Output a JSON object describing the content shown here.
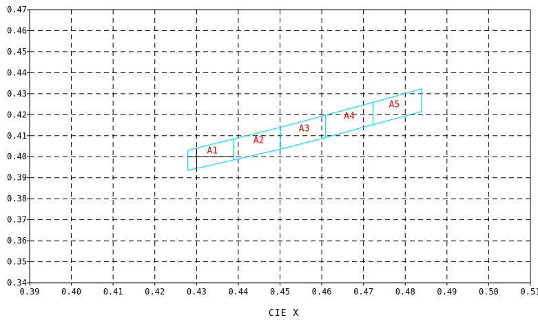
{
  "chart_data": {
    "type": "diagram",
    "title": "",
    "xlabel": "CIE X",
    "ylabel": "",
    "xlim": [
      0.39,
      0.51
    ],
    "ylim": [
      0.34,
      0.47
    ],
    "x_ticks": [
      "0.39",
      "0.40",
      "0.41",
      "0.42",
      "0.43",
      "0.44",
      "0.45",
      "0.46",
      "0.47",
      "0.48",
      "0.49",
      "0.50",
      "0.51"
    ],
    "y_ticks": [
      "0.34",
      "0.35",
      "0.36",
      "0.37",
      "0.38",
      "0.39",
      "0.40",
      "0.41",
      "0.42",
      "0.43",
      "0.44",
      "0.45",
      "0.46",
      "0.47"
    ],
    "grid": true,
    "grid_style": "dashed",
    "colors": {
      "bin_outline": "#00e5ee",
      "bin_label": "#ff0000",
      "grid": "#000000",
      "marker": "#000000"
    },
    "bins": [
      {
        "label": "A1",
        "corners": [
          [
            0.4279,
            0.3935
          ],
          [
            0.4279,
            0.4031
          ],
          [
            0.4389,
            0.4085
          ],
          [
            0.4389,
            0.3985
          ]
        ],
        "label_pos": [
          0.4325,
          0.4015
        ]
      },
      {
        "label": "A2",
        "corners": [
          [
            0.4389,
            0.3985
          ],
          [
            0.4389,
            0.4085
          ],
          [
            0.4501,
            0.414
          ],
          [
            0.4501,
            0.4036
          ]
        ],
        "label_pos": [
          0.4436,
          0.4065
        ]
      },
      {
        "label": "A3",
        "corners": [
          [
            0.4501,
            0.4036
          ],
          [
            0.4501,
            0.414
          ],
          [
            0.4609,
            0.4198
          ],
          [
            0.4609,
            0.4091
          ]
        ],
        "label_pos": [
          0.4545,
          0.4121
        ]
      },
      {
        "label": "A4",
        "corners": [
          [
            0.4609,
            0.4091
          ],
          [
            0.4609,
            0.4198
          ],
          [
            0.4723,
            0.4259
          ],
          [
            0.4723,
            0.4153
          ]
        ],
        "label_pos": [
          0.4653,
          0.418
        ]
      },
      {
        "label": "A5",
        "corners": [
          [
            0.4723,
            0.4153
          ],
          [
            0.4723,
            0.4259
          ],
          [
            0.4839,
            0.4323
          ],
          [
            0.4839,
            0.4215
          ]
        ],
        "label_pos": [
          0.4761,
          0.4236
        ]
      }
    ],
    "marker_point": [
      0.43,
      0.4
    ]
  }
}
